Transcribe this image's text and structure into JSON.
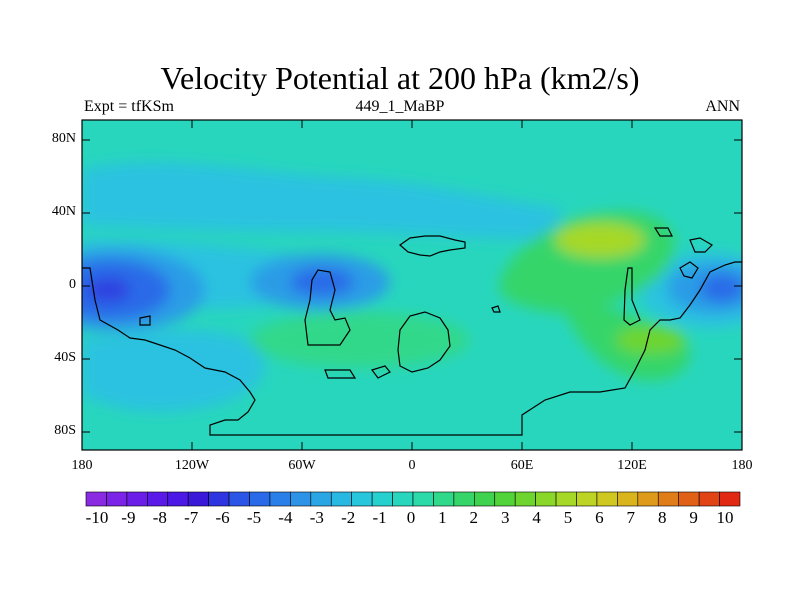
{
  "title": "Velocity Potential at 200 hPa (km2/s)",
  "subtitle_left": "Expt = tfKSm",
  "subtitle_center": "449_1_MaBP",
  "subtitle_right": "ANN",
  "y_ticks": [
    "80N",
    "40N",
    "0",
    "40S",
    "80S"
  ],
  "x_ticks": [
    "180",
    "120W",
    "60W",
    "0",
    "60E",
    "120E",
    "180"
  ],
  "colorbar": {
    "labels": [
      "-10",
      "-9",
      "-8",
      "-7",
      "-6",
      "-5",
      "-4",
      "-3",
      "-2",
      "-1",
      "0",
      "1",
      "2",
      "3",
      "4",
      "5",
      "6",
      "7",
      "8",
      "9",
      "10"
    ],
    "colors": [
      "#8a2be2",
      "#7b23e6",
      "#6a1ee8",
      "#5a1ae8",
      "#4b18e6",
      "#3a1ad8",
      "#2e34e0",
      "#2b55e6",
      "#2a6ae8",
      "#2b7fe8",
      "#2d93e6",
      "#2ba6e4",
      "#29b8e2",
      "#27c6dc",
      "#26d0cf",
      "#28d6bd",
      "#2cd9a8",
      "#30d88a",
      "#36d56a",
      "#3fd24f",
      "#52d33a",
      "#6ed52e",
      "#8ad72a",
      "#a6d827",
      "#bdd424",
      "#cfc820",
      "#d9b41d",
      "#dd9a1b",
      "#df7d19",
      "#e06017",
      "#e24314",
      "#e12812"
    ],
    "value_to_color_note": "color scale -10 to 10 km2/s"
  },
  "colors": {
    "background_field": "#28d6bd",
    "light_blue": "#29c2e0",
    "mid_blue": "#2b9ce6",
    "dark_blue": "#2b6ae8",
    "deep_blue": "#2e3fe0",
    "green": "#36d56a",
    "lime": "#6ed52e",
    "yellowgreen": "#a6d827"
  }
}
